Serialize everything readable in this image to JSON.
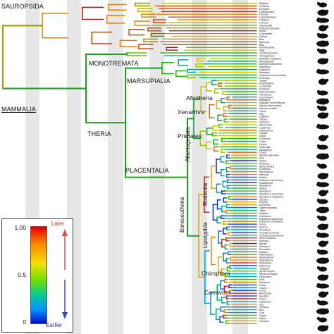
{
  "clade_labels": {
    "sauropsida": "SAUROPSIDA",
    "mammalia": "MAMMALIA",
    "monotremata": "MONOTREMATA",
    "marsupialia": "MARSUPIALIA",
    "theria": "THERIA",
    "afrotheria": "Afrotheria",
    "xenarthra": "Xenarthra",
    "primates": "Primates",
    "placentalia": "PLACENTALIA",
    "atlantogenata": "Atlantogenata",
    "rodentia": "Rodentia",
    "boreoeutheria": "Boreoeutheria",
    "lipotyphla": "Lipotyphla",
    "chiroptera": "Chiroptera",
    "carnivora": "Carnivora"
  },
  "legend": {
    "max": "1.00",
    "mid": "0.5",
    "min": "0",
    "later": "Later",
    "earlier": "Earlier",
    "colors": {
      "later": "#e00000",
      "mid": "#f4e000",
      "earlier": "#0010c8"
    }
  },
  "taxa": [
    "Alligator",
    "Chelonia",
    "Emydura",
    "Lepidochelys",
    "Lacerta",
    "Lepidodactylus",
    "Podarcis",
    "Lacerta",
    "Tupinambis",
    "Rhynchocephalus",
    "Anolis",
    "Chamaeleo",
    "Python",
    "Boa",
    "Bothrops",
    "Bitis",
    "Parthenophis",
    "Naja",
    "Ornithorhynchus",
    "Tachyglossus",
    "Didelphis virginiana",
    "Monodelphis",
    "Didelphis albiventris",
    "Macropus",
    "Dasyurus",
    "Didelphis",
    "Dasyurus novemcinctus",
    "Echinops",
    "Tenrec",
    "Elephantulus",
    "Loxodonta",
    "Echinops",
    "Macroscelides",
    "Trichechus",
    "Orycteropus",
    "Bradypus",
    "Dasypus novemcinctus",
    "Macaca fascicularis",
    "Macaca mulatta",
    "Homo",
    "Pan",
    "Callithrix",
    "Tarsius",
    "Otolemur",
    "Microcebus",
    "Lepilemur",
    "Galeopterus",
    "Tupaia",
    "Lepus",
    "Ochotona",
    "Cavia",
    "Hystrix",
    "Chinchilla",
    "Dipodomys",
    "Castor",
    "Myodes glareolus",
    "Mus",
    "Rattus",
    "Meriones",
    "Mesocricetus",
    "Cricetulus",
    "Peromyscus",
    "Microtus",
    "Rattus",
    "Rattus (Long Evans)",
    "Rhabdomys",
    "Apodemus",
    "Rattus",
    "Apodemus",
    "Apodemus speciosus",
    "Apodemus argenteus",
    "Jaculus",
    "Sciurus",
    "Erinaceus",
    "Talpa europaea",
    "Talpa",
    "Mogera",
    "Crocidura",
    "Erinaceus amurensis",
    "Erinaceus europaeus",
    "Sorex",
    "Suncus",
    "Crocidura",
    "Crocidura russula",
    "Crocidura suaveolens",
    "Sorex araneus",
    "Neomys",
    "Myotis",
    "Pteropus",
    "Rousettus",
    "Eidolon",
    "Rhinolophus",
    "Hipposideros",
    "Megaderma",
    "Pipistrellus",
    "Eptesicus",
    "Tadarida",
    "Myotis myotis",
    "Myotis lucifugus",
    "Desmodus",
    "Felis",
    "Panthera",
    "Canis",
    "Vulpes",
    "Ursus",
    "Ailuropoda",
    "Mustela",
    "Phoca",
    "Odobenus",
    "Sus",
    "Tursiops",
    "Bos",
    "Ovis",
    "Capra",
    "Equus",
    "Camelus"
  ]
}
